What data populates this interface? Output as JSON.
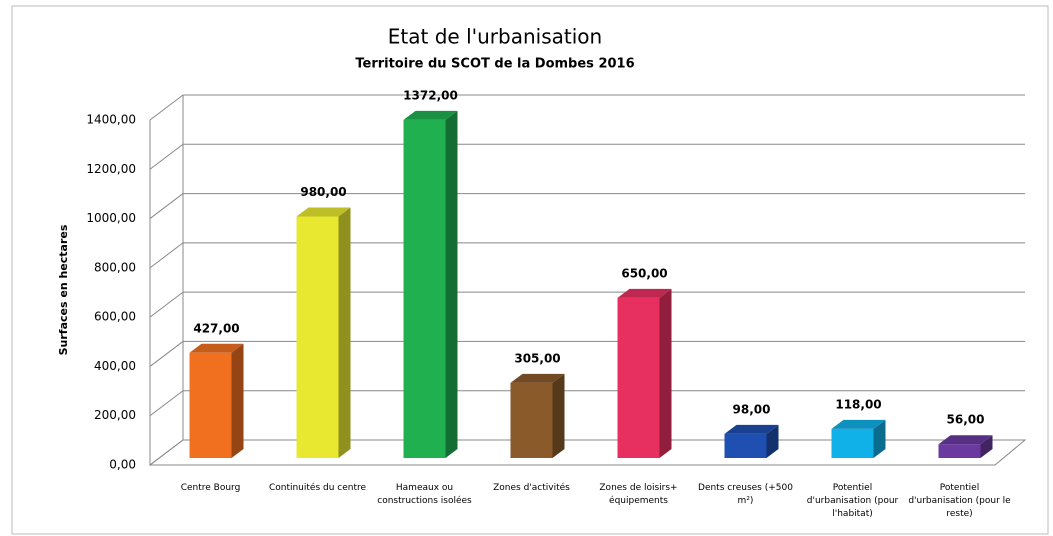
{
  "chart_data": {
    "type": "bar3d",
    "title": "Etat de l'urbanisation",
    "subtitle": "Territoire du SCOT de la Dombes 2016",
    "y_label": "Surfaces en hectares",
    "categories": [
      "Centre Bourg",
      "Continuités du centre",
      "Hameaux ou constructions isolées",
      "Zones d'activités",
      "Zones de loisirs+ équipements",
      "Dents creuses (+500 m²)",
      "Potentiel d'urbanisation (pour l'habitat)",
      "Potentiel d'urbanisation (pour le reste)"
    ],
    "values": [
      427,
      980,
      1372,
      305,
      650,
      98,
      118,
      56
    ],
    "value_labels": [
      "427,00",
      "980,00",
      "1372,00",
      "305,00",
      "650,00",
      "98,00",
      "118,00",
      "56,00"
    ],
    "colors": [
      "#f07020",
      "#e8e830",
      "#20b050",
      "#8b5a2b",
      "#e83060",
      "#1f4fb0",
      "#10b0e8",
      "#6a3aa0"
    ],
    "ylim": [
      0,
      1400
    ],
    "yticks": [
      {
        "value": 0,
        "label": "0,00"
      },
      {
        "value": 200,
        "label": "200,00"
      },
      {
        "value": 400,
        "label": "400,00"
      },
      {
        "value": 600,
        "label": "600,00"
      },
      {
        "value": 800,
        "label": "800,00"
      },
      {
        "value": 1000,
        "label": "1000,00"
      },
      {
        "value": 1200,
        "label": "1200,00"
      },
      {
        "value": 1400,
        "label": "1400,00"
      }
    ],
    "grid": true
  }
}
